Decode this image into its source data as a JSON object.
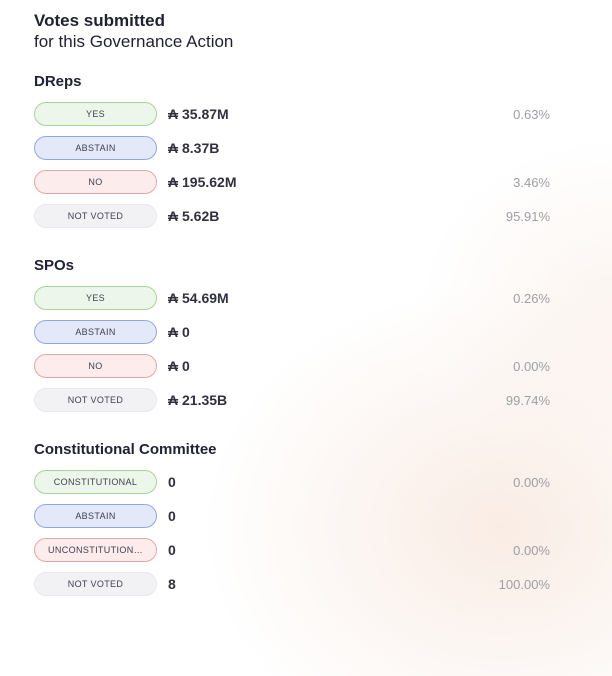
{
  "title": {
    "line1": "Votes submitted",
    "line2": "for this Governance Action"
  },
  "ada_symbol": "₳",
  "colors": {
    "yes_bg": "#edf6ea",
    "yes_border": "#a6d399",
    "abstain_bg": "#e3e9f8",
    "abstain_border": "#94a8e1",
    "no_bg": "#fcecec",
    "no_border": "#e9a6a4",
    "not_voted_bg": "#f2f2f5",
    "not_voted_border": "#e7e7ed",
    "heading_text": "#212234",
    "value_text": "#30313d",
    "percent_text": "#9e9ea4",
    "background_tint": "#f8e9e0"
  },
  "sections": [
    {
      "heading": "DReps",
      "rows": [
        {
          "label": "YES",
          "variant": "yes",
          "value": "₳ 35.87M",
          "percent": "0.63%"
        },
        {
          "label": "ABSTAIN",
          "variant": "abstain",
          "value": "₳ 8.37B",
          "percent": ""
        },
        {
          "label": "NO",
          "variant": "no",
          "value": "₳ 195.62M",
          "percent": "3.46%"
        },
        {
          "label": "NOT VOTED",
          "variant": "not-voted",
          "value": "₳ 5.62B",
          "percent": "95.91%"
        }
      ]
    },
    {
      "heading": "SPOs",
      "rows": [
        {
          "label": "YES",
          "variant": "yes",
          "value": "₳ 54.69M",
          "percent": "0.26%"
        },
        {
          "label": "ABSTAIN",
          "variant": "abstain",
          "value": "₳ 0",
          "percent": ""
        },
        {
          "label": "NO",
          "variant": "no",
          "value": "₳ 0",
          "percent": "0.00%"
        },
        {
          "label": "NOT VOTED",
          "variant": "not-voted",
          "value": "₳ 21.35B",
          "percent": "99.74%"
        }
      ]
    },
    {
      "heading": "Constitutional Committee",
      "rows": [
        {
          "label": "CONSTITUTIONAL",
          "variant": "yes",
          "value": "0",
          "percent": "0.00%"
        },
        {
          "label": "ABSTAIN",
          "variant": "abstain",
          "value": "0",
          "percent": ""
        },
        {
          "label": "UNCONSTITUTION…",
          "variant": "no",
          "value": "0",
          "percent": "0.00%"
        },
        {
          "label": "NOT VOTED",
          "variant": "not-voted",
          "value": "8",
          "percent": "100.00%"
        }
      ]
    }
  ]
}
